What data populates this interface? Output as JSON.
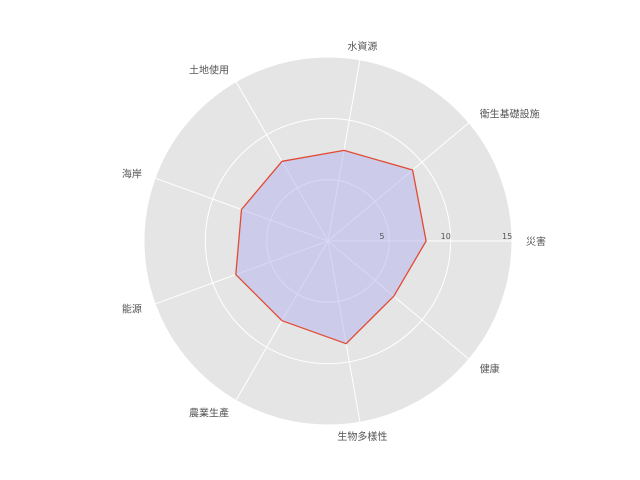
{
  "chart_data": {
    "type": "radar",
    "categories": [
      "災害",
      "衛生基礎設施",
      "水資源",
      "土地使用",
      "海岸",
      "能源",
      "農業生產",
      "生物多樣性",
      "健康"
    ],
    "series": [
      {
        "values": [
          8,
          9,
          7.5,
          7.5,
          7.5,
          8,
          7.5,
          8.5,
          7
        ]
      }
    ],
    "rlim": [
      0,
      15
    ],
    "rticks": [
      5,
      10,
      15
    ],
    "rtick_labels": [
      "5",
      "10",
      "15"
    ],
    "grid": true,
    "colors": {
      "background": "#e5e5e5",
      "grid": "#ffffff",
      "line": "#e24a33",
      "fill": "#b8b8ee",
      "text": "#555555"
    }
  }
}
